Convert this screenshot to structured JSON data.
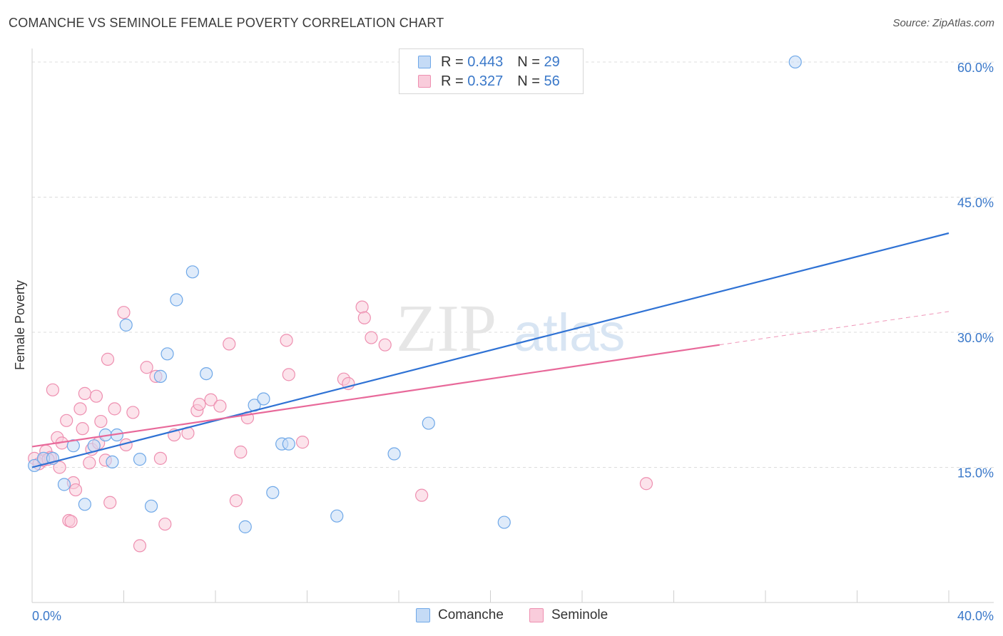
{
  "title": "COMANCHE VS SEMINOLE FEMALE POVERTY CORRELATION CHART",
  "source": "Source: ZipAtlas.com",
  "watermark": {
    "zip": "ZIP",
    "atlas": "atlas"
  },
  "legend_top": [
    {
      "r_label": "R =",
      "r_value": "0.443",
      "n_label": "N =",
      "n_value": "29"
    },
    {
      "r_label": "R =",
      "r_value": "0.327",
      "n_label": "N =",
      "n_value": "56"
    }
  ],
  "legend_bottom": [
    "Comanche",
    "Seminole"
  ],
  "colors": {
    "comanche": "#6fa8e8",
    "comanche_fill": "#c5dbf6",
    "seminole": "#ee8fb0",
    "seminole_fill": "#f9ccdb",
    "comanche_line": "#2f72d4",
    "seminole_line": "#e8699a",
    "tick_text": "#3a78c9"
  },
  "chart_data": {
    "type": "scatter",
    "title": "COMANCHE VS SEMINOLE FEMALE POVERTY CORRELATION CHART",
    "xlabel": "",
    "ylabel": "Female Poverty",
    "xlim": [
      0,
      40
    ],
    "ylim": [
      0,
      61.5
    ],
    "x_tick_labels": [
      "0.0%",
      "40.0%"
    ],
    "y_ticks": [
      15,
      30,
      45,
      60
    ],
    "y_tick_labels": [
      "15.0%",
      "30.0%",
      "45.0%",
      "60.0%"
    ],
    "grid": "horizontal dashed",
    "legend_placement": "top-center",
    "series": [
      {
        "name": "Comanche",
        "r": 0.443,
        "n": 29,
        "trend": {
          "x": [
            0,
            40
          ],
          "y": [
            15.0,
            41.0
          ]
        },
        "points": [
          [
            0.1,
            15.2
          ],
          [
            0.5,
            16.0
          ],
          [
            0.9,
            16.0
          ],
          [
            1.4,
            13.1
          ],
          [
            1.8,
            17.4
          ],
          [
            2.3,
            10.9
          ],
          [
            2.7,
            17.4
          ],
          [
            3.2,
            18.6
          ],
          [
            3.5,
            15.6
          ],
          [
            3.7,
            18.6
          ],
          [
            4.1,
            30.8
          ],
          [
            4.7,
            15.9
          ],
          [
            5.2,
            10.7
          ],
          [
            5.6,
            25.1
          ],
          [
            5.9,
            27.6
          ],
          [
            6.3,
            33.6
          ],
          [
            7.0,
            36.7
          ],
          [
            7.6,
            25.4
          ],
          [
            9.3,
            8.4
          ],
          [
            9.7,
            21.9
          ],
          [
            10.1,
            22.6
          ],
          [
            10.5,
            12.2
          ],
          [
            10.9,
            17.6
          ],
          [
            11.2,
            17.6
          ],
          [
            13.3,
            9.6
          ],
          [
            15.8,
            16.5
          ],
          [
            17.3,
            19.9
          ],
          [
            20.6,
            8.9
          ],
          [
            33.3,
            60.0
          ]
        ]
      },
      {
        "name": "Seminole",
        "r": 0.327,
        "n": 56,
        "trend": {
          "x": [
            0,
            30
          ],
          "y": [
            17.3,
            28.6
          ]
        },
        "trend_extension": {
          "x": [
            30,
            40
          ],
          "y": [
            28.6,
            32.3
          ]
        },
        "points": [
          [
            0.1,
            16.0
          ],
          [
            0.3,
            15.4
          ],
          [
            0.5,
            15.8
          ],
          [
            0.6,
            16.8
          ],
          [
            0.8,
            16.1
          ],
          [
            0.9,
            23.6
          ],
          [
            1.1,
            18.3
          ],
          [
            1.2,
            15.0
          ],
          [
            1.3,
            17.7
          ],
          [
            1.5,
            20.2
          ],
          [
            1.6,
            9.1
          ],
          [
            1.7,
            9.0
          ],
          [
            1.8,
            13.3
          ],
          [
            1.9,
            12.5
          ],
          [
            2.1,
            21.5
          ],
          [
            2.2,
            19.3
          ],
          [
            2.3,
            23.2
          ],
          [
            2.5,
            15.5
          ],
          [
            2.6,
            17.0
          ],
          [
            2.8,
            22.9
          ],
          [
            2.9,
            17.7
          ],
          [
            3.0,
            20.1
          ],
          [
            3.2,
            15.8
          ],
          [
            3.3,
            27.0
          ],
          [
            3.4,
            11.1
          ],
          [
            3.6,
            21.5
          ],
          [
            4.0,
            32.2
          ],
          [
            4.1,
            17.5
          ],
          [
            4.4,
            21.1
          ],
          [
            4.7,
            6.3
          ],
          [
            5.0,
            26.1
          ],
          [
            5.4,
            25.1
          ],
          [
            5.6,
            16.0
          ],
          [
            5.8,
            8.7
          ],
          [
            6.2,
            18.6
          ],
          [
            6.8,
            18.8
          ],
          [
            7.2,
            21.3
          ],
          [
            7.3,
            22.0
          ],
          [
            7.8,
            22.5
          ],
          [
            8.2,
            21.8
          ],
          [
            8.6,
            28.7
          ],
          [
            8.9,
            11.3
          ],
          [
            9.1,
            16.7
          ],
          [
            9.4,
            20.5
          ],
          [
            11.1,
            29.1
          ],
          [
            11.2,
            25.3
          ],
          [
            11.8,
            17.8
          ],
          [
            13.6,
            24.8
          ],
          [
            13.8,
            24.3
          ],
          [
            14.4,
            32.8
          ],
          [
            14.5,
            31.6
          ],
          [
            14.8,
            29.4
          ],
          [
            15.4,
            28.6
          ],
          [
            17.0,
            11.9
          ],
          [
            26.8,
            13.2
          ],
          [
            0.7,
            15.9
          ]
        ]
      }
    ]
  }
}
